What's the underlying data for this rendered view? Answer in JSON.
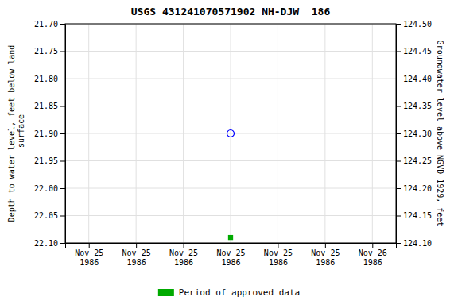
{
  "chart_data": {
    "type": "scatter",
    "title": "USGS 431241070571902 NH-DJW  186",
    "y_label": "Depth to water level, feet below land\n surface",
    "y2_label": "Groundwater level above NGVD 1929, feet",
    "categories": [
      "Nov 25\n1986",
      "Nov 25\n1986",
      "Nov 25\n1986",
      "Nov 25\n1986",
      "Nov 25\n1986",
      "Nov 25\n1986",
      "Nov 26\n1986"
    ],
    "series": [
      {
        "color": "blue",
        "marker": "circle-open",
        "values": [
          null,
          null,
          null,
          21.9,
          null,
          null,
          null
        ]
      },
      {
        "name": "Period of approved data",
        "color": "#00aa00",
        "marker": "square",
        "values": [
          null,
          null,
          null,
          22.09,
          null,
          null,
          null
        ]
      }
    ],
    "ylim": [
      22.1,
      21.7
    ],
    "yticks": [
      {
        "value": 21.7,
        "label": "21.70"
      },
      {
        "value": 21.75,
        "label": "21.75"
      },
      {
        "value": 21.8,
        "label": "21.80"
      },
      {
        "value": 21.85,
        "label": "21.85"
      },
      {
        "value": 21.9,
        "label": "21.90"
      },
      {
        "value": 21.95,
        "label": "21.95"
      },
      {
        "value": 22.0,
        "label": "22.00"
      },
      {
        "value": 22.05,
        "label": "22.05"
      },
      {
        "value": 22.1,
        "label": "22.10"
      }
    ],
    "y2lim": [
      124.1,
      124.5
    ],
    "y2ticks": [
      {
        "value": 124.5,
        "label": "124.50"
      },
      {
        "value": 124.45,
        "label": "124.45"
      },
      {
        "value": 124.4,
        "label": "124.40"
      },
      {
        "value": 124.35,
        "label": "124.35"
      },
      {
        "value": 124.3,
        "label": "124.30"
      },
      {
        "value": 124.25,
        "label": "124.25"
      },
      {
        "value": 124.2,
        "label": "124.20"
      },
      {
        "value": 124.15,
        "label": "124.15"
      },
      {
        "value": 124.1,
        "label": "124.10"
      }
    ],
    "grid": true,
    "legend": "bottom"
  }
}
